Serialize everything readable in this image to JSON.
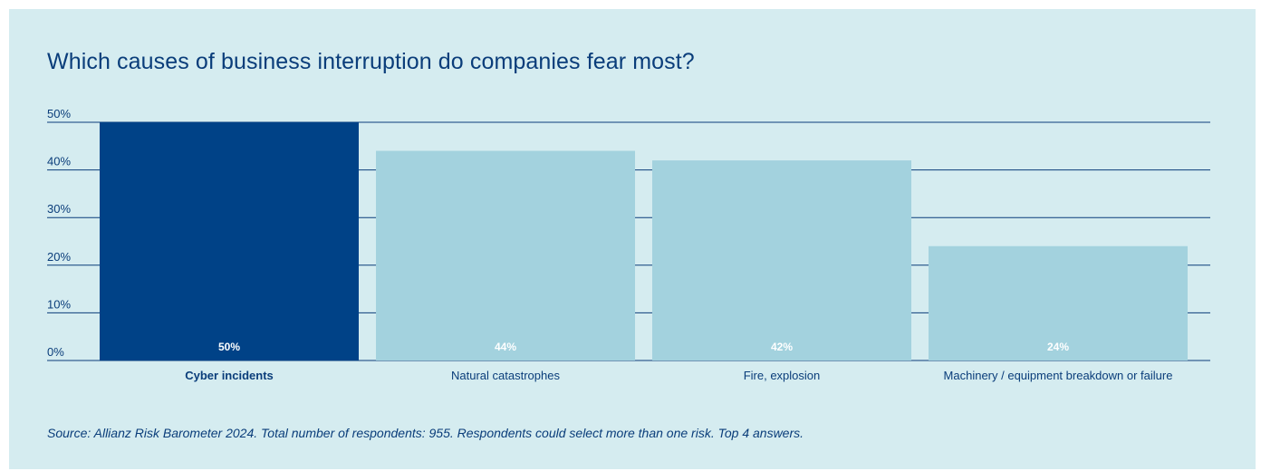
{
  "chart_data": {
    "type": "bar",
    "title": "Which causes of business interruption do companies fear most?",
    "categories": [
      "Cyber incidents",
      "Natural catastrophes",
      "Fire, explosion",
      "Machinery / equipment breakdown or failure"
    ],
    "values": [
      50,
      44,
      42,
      24
    ],
    "value_labels": [
      "50%",
      "44%",
      "42%",
      "24%"
    ],
    "yticks": [
      0,
      10,
      20,
      30,
      40,
      50
    ],
    "ytick_labels": [
      "0%",
      "10%",
      "20%",
      "30%",
      "40%",
      "50%"
    ],
    "ylim": [
      0,
      50
    ],
    "highlight_index": 0,
    "colors": {
      "highlight": "#004287",
      "default": "#a3d2de",
      "grid": "#0a3d7a"
    },
    "grid": true,
    "source": "Source: Allianz Risk Barometer 2024. Total number of respondents: 955. Respondents could select more than one risk. Top 4 answers."
  }
}
